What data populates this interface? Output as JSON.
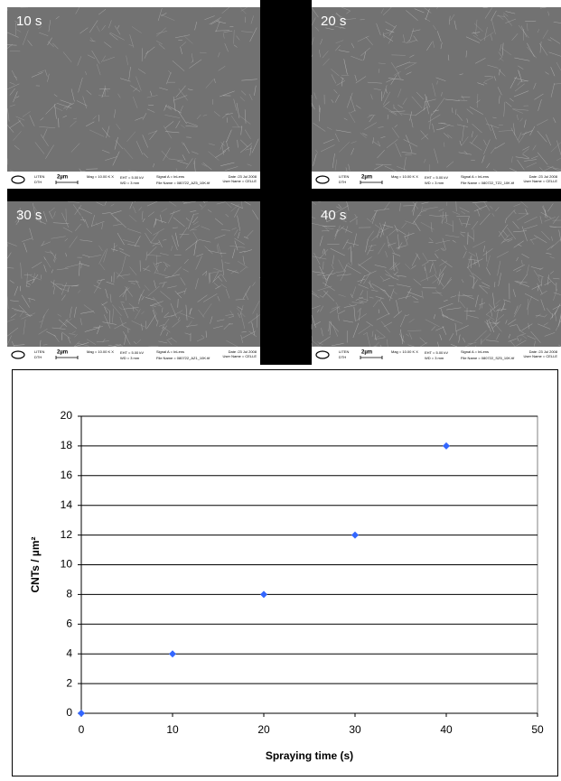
{
  "micrographs": [
    {
      "label": "10 s",
      "org": "LITEN",
      "dept": "DTH",
      "scale": "2µm",
      "mag": "Mag = 10.00 K X",
      "eht": "EHT = 5.00 kV",
      "wd": "WD = 3 mm",
      "signal": "Signal A = InLens",
      "date": "Date :23 Jul 2008",
      "user": "User Name = CELLE",
      "file": "File Name = 080722_AZ5_10K.tif"
    },
    {
      "label": "20 s",
      "org": "LITEN",
      "dept": "DTH",
      "scale": "2µm",
      "mag": "Mag = 10.00 K X",
      "eht": "EHT = 5.00 kV",
      "wd": "WD = 3 mm",
      "signal": "Signal A = InLens",
      "date": "Date :23 Jul 2008",
      "user": "User Name = CELLE",
      "file": "File Name = 080722_TZ2_10K.tif"
    },
    {
      "label": "30 s",
      "org": "LITEN",
      "dept": "DTH",
      "scale": "2µm",
      "mag": "Mag = 10.00 K X",
      "eht": "EHT = 5.00 kV",
      "wd": "WD = 3 mm",
      "signal": "Signal A = InLens",
      "date": "Date :23 Jul 2008",
      "user": "User Name = CELLE",
      "file": "File Name = 080722_AZ1_10K.tif"
    },
    {
      "label": "40 s",
      "org": "LITEN",
      "dept": "DTH",
      "scale": "2µm",
      "mag": "Mag = 10.00 K X",
      "eht": "EHT = 5.00 kV",
      "wd": "WD = 3 mm",
      "signal": "Signal A = InLens",
      "date": "Date :23 Jul 2008",
      "user": "User Name = CELLE",
      "file": "File Name = 080722_SZ5_10K.tif"
    }
  ],
  "chart_data": {
    "type": "scatter",
    "x_label": "Spraying time (s)",
    "y_label": "CNTs / µm²",
    "x": [
      0,
      10,
      20,
      30,
      40
    ],
    "values": [
      0,
      4,
      8,
      12,
      18
    ],
    "color": "#3366ff",
    "xlim": [
      0,
      50
    ],
    "xticks": [
      0,
      10,
      20,
      30,
      40,
      50
    ],
    "ylim": [
      0,
      20
    ],
    "yticks": [
      0,
      2,
      4,
      6,
      8,
      10,
      12,
      14,
      16,
      18,
      20
    ],
    "grid": true
  }
}
